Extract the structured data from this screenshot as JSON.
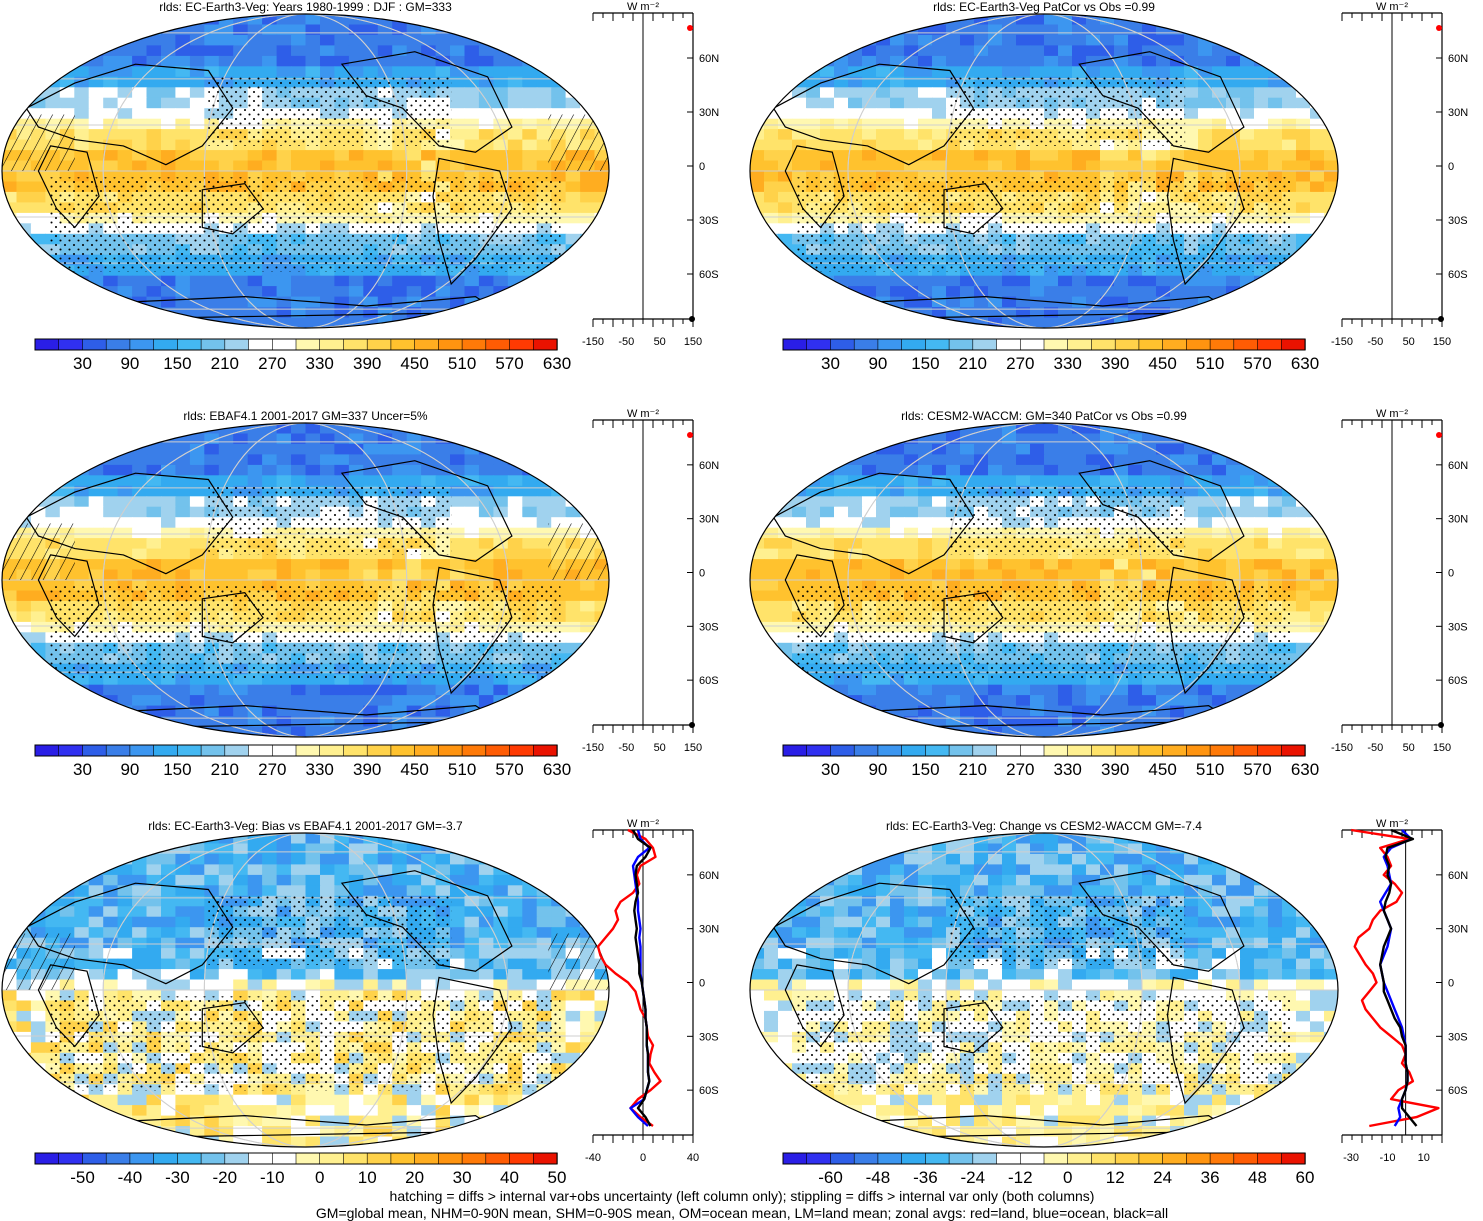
{
  "panels": [
    {
      "title": "rlds: EC-Earth3-Veg: Years 1980-1999 : DJF : GM=333",
      "kind": "mean",
      "hatch": true,
      "stipple": true,
      "seed": 3,
      "colorbar": {
        "labels": [
          "30",
          "90",
          "150",
          "210",
          "270",
          "330",
          "390",
          "450",
          "510",
          "570",
          "630"
        ]
      },
      "zonal": {
        "unit": "W m⁻²",
        "xticks": [
          "-150",
          "-50",
          "50",
          "150"
        ],
        "lat_labels": [
          "60N",
          "30N",
          "0",
          "30S",
          "60S"
        ]
      }
    },
    {
      "title": "rlds: EC-Earth3-Veg PatCor vs Obs =0.99",
      "kind": "mean",
      "hatch": false,
      "stipple": true,
      "seed": 7,
      "colorbar": {
        "labels": [
          "30",
          "90",
          "150",
          "210",
          "270",
          "330",
          "390",
          "450",
          "510",
          "570",
          "630"
        ]
      },
      "zonal": {
        "unit": "W m⁻²",
        "xticks": [
          "-150",
          "-50",
          "50",
          "150"
        ],
        "lat_labels": [
          "60N",
          "30N",
          "0",
          "30S",
          "60S"
        ]
      }
    },
    {
      "title": "rlds: EBAF4.1 2001-2017 GM=337 Uncer=5%",
      "kind": "mean",
      "hatch": true,
      "stipple": true,
      "seed": 11,
      "colorbar": {
        "labels": [
          "30",
          "90",
          "150",
          "210",
          "270",
          "330",
          "390",
          "450",
          "510",
          "570",
          "630"
        ]
      },
      "zonal": {
        "unit": "W m⁻²",
        "xticks": [
          "-150",
          "-50",
          "50",
          "150"
        ],
        "lat_labels": [
          "60N",
          "30N",
          "0",
          "30S",
          "60S"
        ]
      }
    },
    {
      "title": "rlds: CESM2-WACCM: GM=340 PatCor vs Obs =0.99",
      "kind": "mean",
      "hatch": false,
      "stipple": true,
      "seed": 13,
      "colorbar": {
        "labels": [
          "30",
          "90",
          "150",
          "210",
          "270",
          "330",
          "390",
          "450",
          "510",
          "570",
          "630"
        ]
      },
      "zonal": {
        "unit": "W m⁻²",
        "xticks": [
          "-150",
          "-50",
          "50",
          "150"
        ],
        "lat_labels": [
          "60N",
          "30N",
          "0",
          "30S",
          "60S"
        ]
      }
    },
    {
      "title": "rlds: EC-Earth3-Veg: Bias vs EBAF4.1 2001-2017 GM=-3.7",
      "kind": "bias",
      "hatch": true,
      "stipple": true,
      "seed": 17,
      "colorbar": {
        "labels": [
          "-50",
          "-40",
          "-30",
          "-20",
          "-10",
          "0",
          "10",
          "20",
          "30",
          "40",
          "50"
        ]
      },
      "zonal": {
        "unit": "W m⁻²",
        "xticks": [
          "-40",
          "0",
          "40"
        ],
        "lat_labels": [
          "60N",
          "30N",
          "0",
          "30S",
          "60S"
        ]
      }
    },
    {
      "title": "rlds: EC-Earth3-Veg: Change vs CESM2-WACCM GM=-7.4",
      "kind": "change",
      "hatch": false,
      "stipple": true,
      "seed": 19,
      "colorbar": {
        "labels": [
          "-60",
          "-48",
          "-36",
          "-24",
          "-12",
          "0",
          "12",
          "24",
          "36",
          "48",
          "60"
        ]
      },
      "zonal": {
        "unit": "W m⁻²",
        "xticks": [
          "-30",
          "-10",
          "10"
        ],
        "lat_labels": [
          "60N",
          "30N",
          "0",
          "30S",
          "60S"
        ]
      }
    }
  ],
  "chart_data": {
    "type": "heatmap",
    "variable": "rlds",
    "mean_levels": [
      0,
      30,
      60,
      90,
      120,
      150,
      180,
      210,
      240,
      270,
      300,
      330,
      360,
      390,
      420,
      450,
      480,
      510,
      540,
      570,
      600,
      630,
      660
    ],
    "bias_levels": [
      -55,
      -50,
      -45,
      -40,
      -35,
      -30,
      -25,
      -20,
      -15,
      -10,
      -5,
      0,
      5,
      10,
      15,
      20,
      25,
      30,
      35,
      40,
      45,
      50,
      55
    ],
    "change_levels": [
      -66,
      -60,
      -54,
      -48,
      -42,
      -36,
      -30,
      -24,
      -18,
      -12,
      -6,
      0,
      6,
      12,
      18,
      24,
      30,
      36,
      42,
      48,
      54,
      60,
      66
    ],
    "colors": [
      "#2a1ee6",
      "#3030f0",
      "#2e5ee8",
      "#3a7ee8",
      "#3c96f0",
      "#33aaf0",
      "#44b8f2",
      "#73c2ec",
      "#a0d2ee",
      "#ffffff",
      "#ffffff",
      "#fff8b0",
      "#fff090",
      "#ffe36a",
      "#ffd24a",
      "#ffc22e",
      "#ffad20",
      "#ff9410",
      "#ff7a08",
      "#ff5c04",
      "#ff3a02",
      "#ea1200"
    ],
    "zonal_series": [
      {
        "name": "",
        "lines": [],
        "xlim": [
          -150,
          150
        ]
      },
      {
        "name": "",
        "lines": [],
        "xlim": [
          -150,
          150
        ]
      },
      {
        "name": "",
        "lines": [],
        "xlim": [
          -150,
          150
        ]
      },
      {
        "name": "",
        "lines": [],
        "xlim": [
          -150,
          150
        ]
      },
      {
        "xlim": [
          -40,
          40
        ],
        "lat": [
          85,
          80,
          75,
          70,
          65,
          60,
          55,
          50,
          45,
          40,
          35,
          30,
          25,
          20,
          15,
          10,
          5,
          0,
          -5,
          -10,
          -15,
          -20,
          -25,
          -30,
          -35,
          -40,
          -45,
          -50,
          -55,
          -60,
          -65,
          -70,
          -75,
          -80
        ],
        "land": [
          -12,
          2,
          8,
          10,
          -2,
          -5,
          -3,
          -8,
          -18,
          -22,
          -20,
          -24,
          -30,
          -36,
          -34,
          -30,
          -22,
          -12,
          -6,
          -4,
          -2,
          2,
          3,
          4,
          8,
          6,
          5,
          9,
          14,
          6,
          -4,
          -10,
          -2,
          8
        ],
        "ocean": [
          -4,
          -2,
          5,
          -4,
          -8,
          -7,
          -6,
          -5,
          -4,
          -4,
          -3,
          -2,
          -3,
          -2,
          -2,
          -2,
          -2,
          -1,
          0,
          1,
          2,
          2,
          3,
          3,
          3,
          4,
          4,
          4,
          5,
          3,
          1,
          -10,
          -4,
          4
        ],
        "all": [
          -8,
          -4,
          6,
          2,
          -5,
          -6,
          -5,
          -4,
          -6,
          -7,
          -6,
          -5,
          -6,
          -5,
          -4,
          -3,
          -3,
          -1,
          0,
          1,
          2,
          2,
          3,
          3,
          3,
          4,
          4,
          4,
          5,
          3,
          1,
          -4,
          2,
          6
        ]
      },
      {
        "xlim": [
          -35,
          20
        ],
        "lat": [
          85,
          80,
          75,
          70,
          65,
          60,
          55,
          50,
          45,
          40,
          35,
          30,
          25,
          20,
          15,
          10,
          5,
          0,
          -5,
          -10,
          -15,
          -20,
          -25,
          -30,
          -35,
          -40,
          -45,
          -50,
          -55,
          -60,
          -65,
          -70,
          -75,
          -80
        ],
        "land": [
          -30,
          2,
          -14,
          -10,
          -8,
          -12,
          -6,
          -2,
          -5,
          -14,
          -18,
          -20,
          -26,
          -28,
          -25,
          -22,
          -18,
          -16,
          -20,
          -24,
          -22,
          -18,
          -14,
          -8,
          -2,
          0,
          -2,
          2,
          4,
          -4,
          -8,
          18,
          6,
          -20
        ],
        "ocean": [
          -2,
          3,
          -8,
          -12,
          -10,
          -9,
          -8,
          -11,
          -14,
          -12,
          -10,
          -8,
          -9,
          -10,
          -12,
          -14,
          -13,
          -12,
          -10,
          -8,
          -6,
          -4,
          -2,
          -1,
          0,
          0,
          0,
          1,
          1,
          0,
          -2,
          -4,
          -3,
          -6
        ],
        "all": [
          -8,
          4,
          -10,
          -11,
          -9,
          -10,
          -8,
          -9,
          -11,
          -12,
          -10,
          -8,
          -10,
          -12,
          -13,
          -14,
          -13,
          -12,
          -12,
          -10,
          -8,
          -6,
          -3,
          -2,
          0,
          0,
          0,
          1,
          1,
          0,
          -2,
          -2,
          2,
          6
        ]
      }
    ]
  },
  "footer": {
    "line1": "hatching = diffs > internal var+obs uncertainty (left column only); stippling = diffs > internal var only (both columns)",
    "line2": "GM=global mean, NHM=0-90N mean, SHM=0-90S mean, OM=ocean mean, LM=land mean; zonal avgs: red=land, blue=ocean, black=all"
  }
}
